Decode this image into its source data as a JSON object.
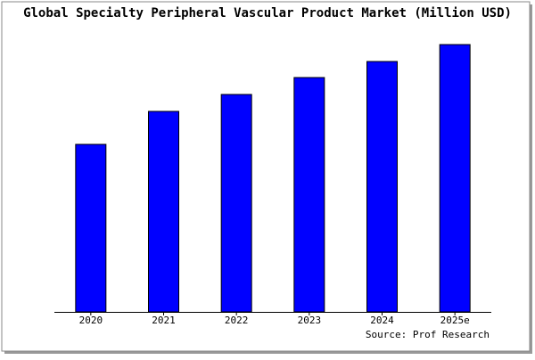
{
  "chart_data": {
    "type": "bar",
    "title": "Global Specialty Peripheral Vascular Product Market (Million USD)",
    "categories": [
      "2020",
      "2021",
      "2022",
      "2023",
      "2024",
      "2025e"
    ],
    "values": [
      188,
      225,
      244,
      263,
      281,
      300
    ],
    "color": "#0000ff",
    "source": "Source: Prof Research"
  }
}
